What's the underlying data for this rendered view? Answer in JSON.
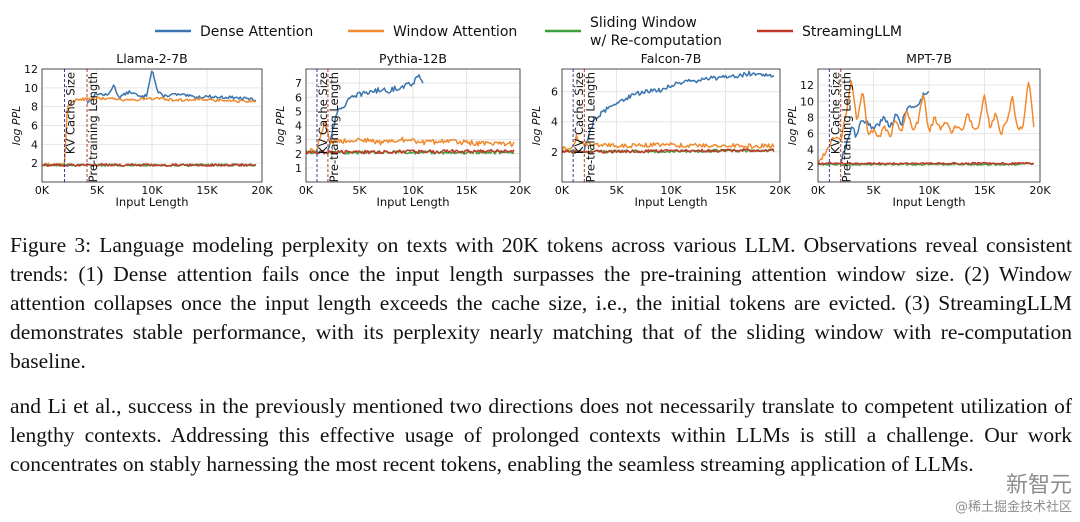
{
  "legend": [
    {
      "label": "Dense Attention",
      "color": "#3a75b0"
    },
    {
      "label": "Window Attention",
      "color": "#ef8a2e"
    },
    {
      "label": "Sliding Window\nw/ Re-computation",
      "color": "#3c9e3c"
    },
    {
      "label": "StreamingLLM",
      "color": "#c0392b"
    }
  ],
  "chart_data": [
    {
      "type": "line",
      "title": "Llama-2-7B",
      "xlabel": "Input Length",
      "ylabel": "log PPL",
      "xlim": [
        0,
        20000
      ],
      "ylim": [
        0,
        12
      ],
      "xticks": [
        0,
        5000,
        10000,
        15000,
        20000
      ],
      "xticklabels": [
        "0K",
        "5K",
        "10K",
        "15K",
        "20K"
      ],
      "yticks": [
        2,
        4,
        6,
        8,
        10,
        12
      ],
      "vlines": [
        {
          "x": 2048,
          "label": "KV Cache Size",
          "color": "#3a3aa0"
        },
        {
          "x": 4096,
          "label": "Pre-training Length",
          "color": "#c0392b"
        }
      ],
      "series": [
        {
          "name": "Dense Attention",
          "color": "#3a75b0",
          "start": 4096,
          "end": 19500,
          "points": [
            [
              4096,
              8.4
            ],
            [
              5000,
              9.4
            ],
            [
              6000,
              9.2
            ],
            [
              6500,
              10.3
            ],
            [
              7000,
              9.0
            ],
            [
              8000,
              9.6
            ],
            [
              9000,
              9.0
            ],
            [
              9500,
              9.2
            ],
            [
              10000,
              12.0
            ],
            [
              10500,
              9.6
            ],
            [
              11000,
              9.1
            ],
            [
              12000,
              9.3
            ],
            [
              13000,
              9.2
            ],
            [
              14000,
              9.0
            ],
            [
              15000,
              9.1
            ],
            [
              16000,
              9.0
            ],
            [
              17000,
              9.0
            ],
            [
              18000,
              8.9
            ],
            [
              19000,
              8.8
            ],
            [
              19500,
              8.6
            ]
          ],
          "noise": 0.15
        },
        {
          "name": "Window Attention",
          "color": "#ef8a2e",
          "start": 0,
          "end": 19500,
          "points": [
            [
              0,
              1.8
            ],
            [
              1500,
              1.9
            ],
            [
              2048,
              1.9
            ],
            [
              2300,
              8.0
            ],
            [
              3000,
              8.7
            ],
            [
              4000,
              8.8
            ],
            [
              6000,
              8.9
            ],
            [
              8000,
              8.7
            ],
            [
              10000,
              8.9
            ],
            [
              12000,
              8.7
            ],
            [
              14000,
              8.8
            ],
            [
              16000,
              8.7
            ],
            [
              18000,
              8.6
            ],
            [
              19500,
              8.5
            ]
          ],
          "noise": 0.15
        },
        {
          "name": "Sliding Window w/ Re-computation",
          "color": "#3c9e3c",
          "start": 0,
          "end": 19500,
          "points": [
            [
              0,
              1.8
            ],
            [
              19500,
              1.8
            ]
          ],
          "noise": 0.12
        },
        {
          "name": "StreamingLLM",
          "color": "#c0392b",
          "start": 0,
          "end": 19500,
          "points": [
            [
              0,
              1.8
            ],
            [
              19500,
              1.8
            ]
          ],
          "noise": 0.12
        }
      ]
    },
    {
      "type": "line",
      "title": "Pythia-12B",
      "xlabel": "Input Length",
      "ylabel": "log PPL",
      "xlim": [
        0,
        20000
      ],
      "ylim": [
        0,
        8
      ],
      "xticks": [
        0,
        5000,
        10000,
        15000,
        20000
      ],
      "xticklabels": [
        "0K",
        "5K",
        "10K",
        "15K",
        "20K"
      ],
      "yticks": [
        1,
        2,
        3,
        4,
        5,
        6,
        7
      ],
      "vlines": [
        {
          "x": 1024,
          "label": "KV Cache Size",
          "color": "#3a3aa0"
        },
        {
          "x": 2048,
          "label": "Pre-training Length",
          "color": "#c0392b"
        }
      ],
      "series": [
        {
          "name": "Dense Attention",
          "color": "#3a75b0",
          "start": 2048,
          "end": 11000,
          "points": [
            [
              2048,
              2.2
            ],
            [
              2500,
              3.8
            ],
            [
              3000,
              5.0
            ],
            [
              4000,
              5.8
            ],
            [
              5000,
              6.2
            ],
            [
              6000,
              6.4
            ],
            [
              7000,
              6.5
            ],
            [
              8000,
              6.5
            ],
            [
              9000,
              6.8
            ],
            [
              10000,
              7.0
            ],
            [
              10500,
              7.6
            ],
            [
              11000,
              7.1
            ]
          ],
          "noise": 0.2
        },
        {
          "name": "Window Attention",
          "color": "#ef8a2e",
          "start": 0,
          "end": 19500,
          "points": [
            [
              0,
              2.2
            ],
            [
              1024,
              2.3
            ],
            [
              1200,
              3.0
            ],
            [
              1800,
              4.2
            ],
            [
              2200,
              2.8
            ],
            [
              3000,
              2.9
            ],
            [
              5000,
              3.0
            ],
            [
              7000,
              2.8
            ],
            [
              9000,
              3.0
            ],
            [
              11000,
              2.8
            ],
            [
              13000,
              2.9
            ],
            [
              15000,
              2.8
            ],
            [
              17000,
              2.7
            ],
            [
              19500,
              2.7
            ]
          ],
          "noise": 0.18
        },
        {
          "name": "Sliding Window w/ Re-computation",
          "color": "#3c9e3c",
          "start": 0,
          "end": 19500,
          "points": [
            [
              0,
              2.1
            ],
            [
              19500,
              2.1
            ]
          ],
          "noise": 0.12
        },
        {
          "name": "StreamingLLM",
          "color": "#c0392b",
          "start": 0,
          "end": 19500,
          "points": [
            [
              0,
              2.1
            ],
            [
              19500,
              2.2
            ]
          ],
          "noise": 0.12
        }
      ]
    },
    {
      "type": "line",
      "title": "Falcon-7B",
      "xlabel": "Input Length",
      "ylabel": "log PPL",
      "xlim": [
        0,
        20000
      ],
      "ylim": [
        0,
        7.5
      ],
      "xticks": [
        0,
        5000,
        10000,
        15000,
        20000
      ],
      "xticklabels": [
        "0K",
        "5K",
        "10K",
        "15K",
        "20K"
      ],
      "yticks": [
        2,
        4,
        6
      ],
      "vlines": [
        {
          "x": 1024,
          "label": "KV Cache Size",
          "color": "#3a3aa0"
        },
        {
          "x": 2048,
          "label": "Pre-training Length",
          "color": "#c0392b"
        }
      ],
      "series": [
        {
          "name": "Dense Attention",
          "color": "#3a75b0",
          "start": 2048,
          "end": 19500,
          "points": [
            [
              2048,
              2.2
            ],
            [
              2500,
              3.2
            ],
            [
              3000,
              4.2
            ],
            [
              4000,
              4.8
            ],
            [
              5000,
              5.2
            ],
            [
              6000,
              5.6
            ],
            [
              7000,
              5.9
            ],
            [
              8000,
              6.0
            ],
            [
              9000,
              6.1
            ],
            [
              10000,
              6.4
            ],
            [
              11000,
              6.6
            ],
            [
              12000,
              6.7
            ],
            [
              13000,
              6.8
            ],
            [
              14000,
              6.9
            ],
            [
              15000,
              7.0
            ],
            [
              16000,
              7.0
            ],
            [
              17000,
              7.2
            ],
            [
              18000,
              7.2
            ],
            [
              19500,
              7.1
            ]
          ],
          "noise": 0.15
        },
        {
          "name": "Window Attention",
          "color": "#ef8a2e",
          "start": 0,
          "end": 19500,
          "points": [
            [
              0,
              2.2
            ],
            [
              1024,
              2.3
            ],
            [
              1300,
              3.0
            ],
            [
              1800,
              2.6
            ],
            [
              3000,
              2.5
            ],
            [
              6000,
              2.4
            ],
            [
              9000,
              2.5
            ],
            [
              12000,
              2.4
            ],
            [
              15000,
              2.4
            ],
            [
              19500,
              2.4
            ]
          ],
          "noise": 0.15
        },
        {
          "name": "Sliding Window w/ Re-computation",
          "color": "#3c9e3c",
          "start": 0,
          "end": 19500,
          "points": [
            [
              0,
              2.0
            ],
            [
              19500,
              2.1
            ]
          ],
          "noise": 0.1
        },
        {
          "name": "StreamingLLM",
          "color": "#c0392b",
          "start": 0,
          "end": 19500,
          "points": [
            [
              0,
              2.0
            ],
            [
              19500,
              2.1
            ]
          ],
          "noise": 0.1
        }
      ]
    },
    {
      "type": "line",
      "title": "MPT-7B",
      "xlabel": "Input Length",
      "ylabel": "log PPL",
      "xlim": [
        0,
        20000
      ],
      "ylim": [
        0,
        14
      ],
      "xticks": [
        0,
        5000,
        10000,
        15000,
        20000
      ],
      "xticklabels": [
        "0K",
        "5K",
        "10K",
        "15K",
        "20K"
      ],
      "yticks": [
        2,
        4,
        6,
        8,
        10,
        12
      ],
      "vlines": [
        {
          "x": 1024,
          "label": "KV Cache Size",
          "color": "#3a3aa0"
        },
        {
          "x": 2048,
          "label": "Pre-training Length",
          "color": "#c0392b"
        }
      ],
      "series": [
        {
          "name": "Dense Attention",
          "color": "#3a75b0",
          "start": 2048,
          "end": 10000,
          "points": [
            [
              2048,
              2.3
            ],
            [
              2500,
              4.5
            ],
            [
              3000,
              7.0
            ],
            [
              3500,
              5.5
            ],
            [
              4000,
              8.0
            ],
            [
              5000,
              6.5
            ],
            [
              6000,
              8.0
            ],
            [
              6500,
              6.5
            ],
            [
              7000,
              8.5
            ],
            [
              7500,
              7.0
            ],
            [
              8000,
              9.0
            ],
            [
              9000,
              9.5
            ],
            [
              9500,
              10.8
            ],
            [
              10000,
              11.0
            ]
          ],
          "noise": 0.4
        },
        {
          "name": "Window Attention",
          "color": "#ef8a2e",
          "start": 0,
          "end": 19500,
          "points": [
            [
              0,
              2.3
            ],
            [
              1024,
              4.5
            ],
            [
              1500,
              5.8
            ],
            [
              2000,
              5.0
            ],
            [
              2500,
              8.0
            ],
            [
              3000,
              12.5
            ],
            [
              3500,
              7.5
            ],
            [
              4000,
              11.5
            ],
            [
              4500,
              6.0
            ],
            [
              5000,
              6.5
            ],
            [
              5500,
              5.5
            ],
            [
              6000,
              7.0
            ],
            [
              6500,
              5.5
            ],
            [
              7000,
              8.0
            ],
            [
              7500,
              6.0
            ],
            [
              8000,
              9.0
            ],
            [
              8500,
              6.5
            ],
            [
              9000,
              7.5
            ],
            [
              9500,
              11.0
            ],
            [
              10000,
              6.0
            ],
            [
              10500,
              8.0
            ],
            [
              11000,
              6.5
            ],
            [
              11500,
              7.5
            ],
            [
              12000,
              6.2
            ],
            [
              12500,
              7.0
            ],
            [
              13000,
              6.5
            ],
            [
              13500,
              8.5
            ],
            [
              14000,
              6.5
            ],
            [
              14500,
              7.0
            ],
            [
              15000,
              11.0
            ],
            [
              15500,
              6.5
            ],
            [
              16000,
              8.5
            ],
            [
              16500,
              6.0
            ],
            [
              17000,
              7.5
            ],
            [
              17500,
              10.5
            ],
            [
              18000,
              6.5
            ],
            [
              18500,
              7.0
            ],
            [
              19000,
              13.0
            ],
            [
              19500,
              6.0
            ]
          ],
          "noise": 0.3
        },
        {
          "name": "Sliding Window w/ Re-computation",
          "color": "#3c9e3c",
          "start": 0,
          "end": 19500,
          "points": [
            [
              0,
              2.2
            ],
            [
              19500,
              2.2
            ]
          ],
          "noise": 0.12
        },
        {
          "name": "StreamingLLM",
          "color": "#c0392b",
          "start": 0,
          "end": 19500,
          "points": [
            [
              0,
              2.3
            ],
            [
              19500,
              2.3
            ]
          ],
          "noise": 0.12
        }
      ]
    }
  ],
  "caption": "Figure 3: Language modeling perplexity on texts with 20K tokens across various LLM. Observations reveal consistent trends: (1) Dense attention fails once the input length surpasses the pre-training attention window size. (2) Window attention collapses once the input length exceeds the cache size, i.e., the initial tokens are evicted. (3) StreamingLLM demonstrates stable performance, with its perplexity nearly matching that of the sliding window with re-computation baseline.",
  "paragraph": "and Li et al., success in the previously mentioned two directions does not necessarily translate to competent utilization of lengthy contexts. Addressing this effective usage of prolonged contexts within LLMs is still a challenge. Our work concentrates on stably harnessing the most recent tokens, enabling the seamless streaming application of LLMs.",
  "watermark": {
    "logo": "新智元",
    "sub": "@稀土掘金技术社区"
  }
}
